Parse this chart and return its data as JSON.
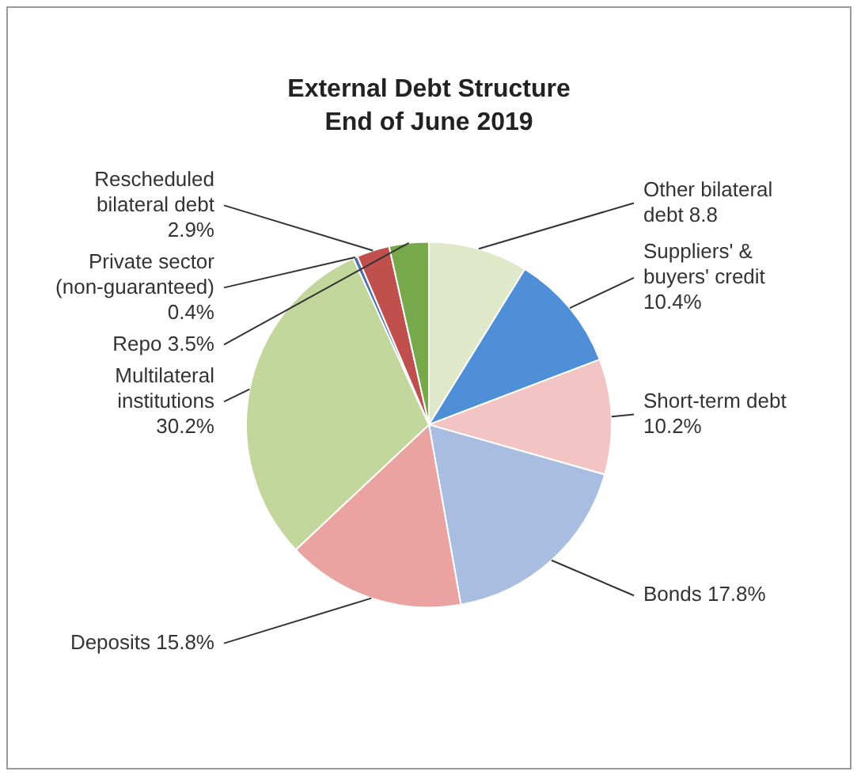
{
  "chart_data": {
    "type": "pie",
    "title": "External Debt Structure",
    "subtitle": "End of June 2019",
    "categories": [
      "Other bilateral debt",
      "Suppliers' & buyers' credit",
      "Short-term debt",
      "Bonds",
      "Deposits",
      "Multilateral institutions",
      "Private sector (non-guaranteed)",
      "Rescheduled bilateral debt",
      "Repo"
    ],
    "values": [
      8.8,
      10.4,
      10.2,
      17.8,
      15.8,
      30.2,
      0.4,
      2.9,
      3.5
    ],
    "colors": [
      "#dfe9c9",
      "#4f8fd8",
      "#f2c4c4",
      "#a9bde0",
      "#eaa3a0",
      "#c3d69b",
      "#4f6fb0",
      "#c0504d",
      "#77a84a"
    ],
    "value_labels": [
      "8.8",
      "10.4%",
      "10.2%",
      "17.8%",
      "15.8%",
      "30.2%",
      "0.4%",
      "2.9%",
      "3.5%"
    ]
  }
}
